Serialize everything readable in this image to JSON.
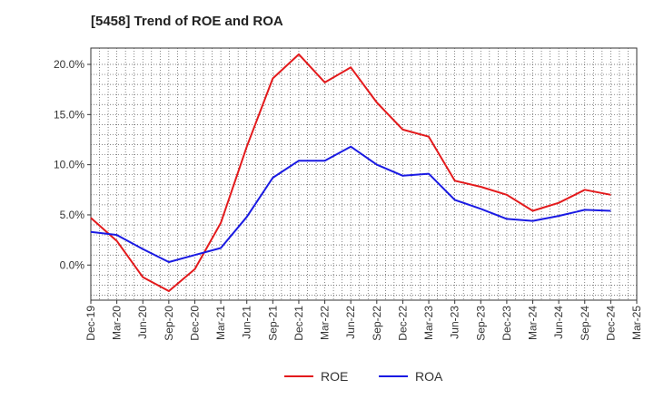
{
  "chart_data": {
    "type": "line",
    "title": "[5458]  Trend of ROE and ROA",
    "x": [
      "Dec-19",
      "Mar-20",
      "Jun-20",
      "Sep-20",
      "Dec-20",
      "Mar-21",
      "Jun-21",
      "Sep-21",
      "Dec-21",
      "Mar-22",
      "Jun-22",
      "Sep-22",
      "Dec-22",
      "Mar-23",
      "Jun-23",
      "Sep-23",
      "Dec-23",
      "Mar-24",
      "Jun-24",
      "Sep-24",
      "Dec-24",
      "Mar-25"
    ],
    "ylim": [
      -3.5,
      20.0
    ],
    "yticks": [
      0.0,
      5.0,
      10.0,
      15.0,
      20.0
    ],
    "ytick_labels": [
      "0.0%",
      "5.0%",
      "10.0%",
      "15.0%",
      "20.0%"
    ],
    "grid": true,
    "legend_position": "bottom-center",
    "series": [
      {
        "name": "ROE",
        "color": "#e31a1c",
        "values": [
          4.7,
          2.4,
          -1.2,
          -2.6,
          -0.4,
          4.2,
          11.8,
          18.6,
          21.0,
          18.2,
          19.7,
          16.2,
          13.5,
          12.8,
          8.4,
          7.8,
          7.0,
          5.4,
          6.2,
          7.5,
          7.0,
          null
        ]
      },
      {
        "name": "ROA",
        "color": "#1a1ae3",
        "values": [
          3.3,
          3.0,
          1.6,
          0.3,
          1.0,
          1.7,
          4.8,
          8.7,
          10.4,
          10.4,
          11.8,
          10.0,
          8.9,
          9.1,
          6.5,
          5.6,
          4.6,
          4.4,
          4.9,
          5.5,
          5.4,
          null
        ]
      }
    ]
  }
}
